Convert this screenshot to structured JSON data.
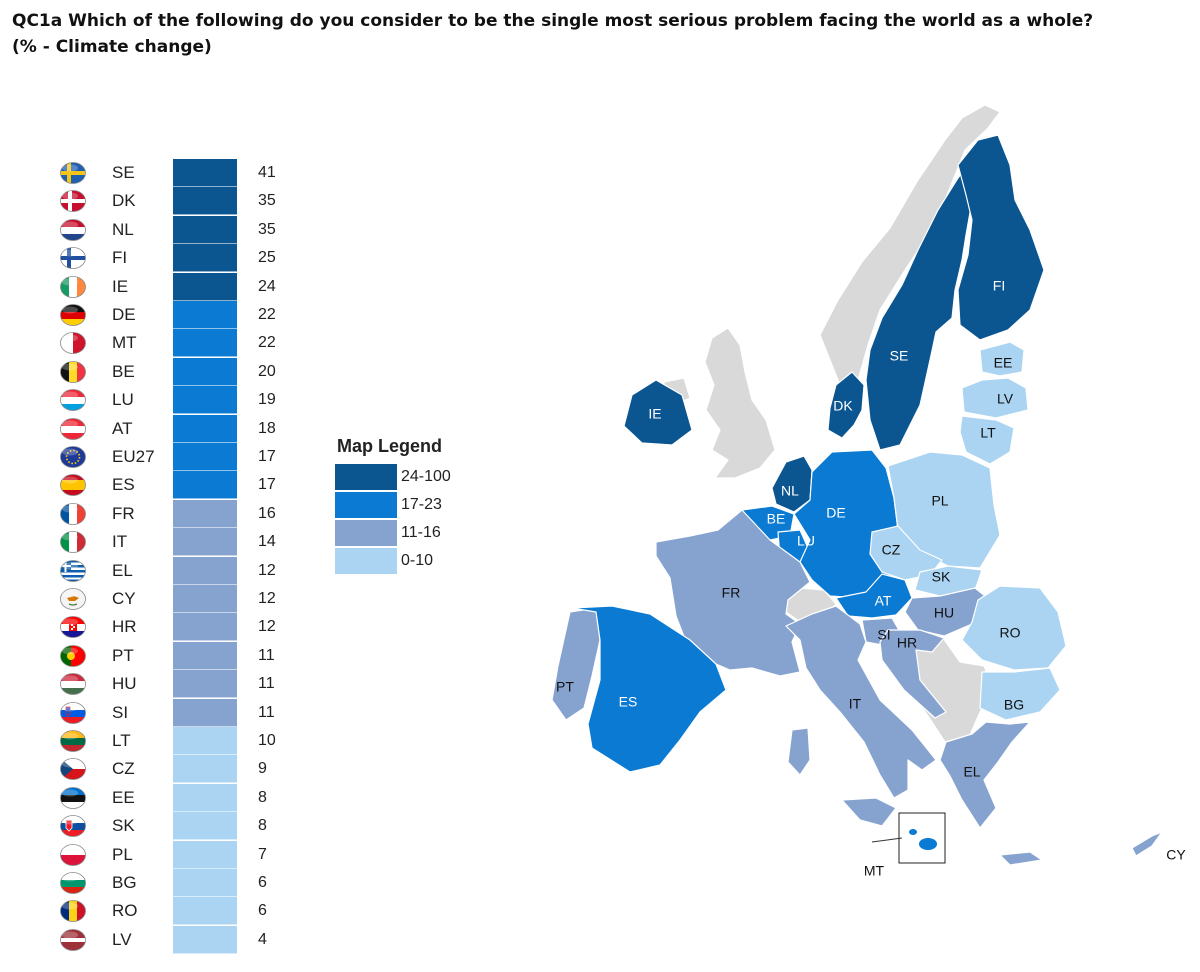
{
  "title": {
    "line1": "QC1a Which of the following do you consider to be the single most serious problem facing the world as a whole?",
    "line2": "(% - Climate change)"
  },
  "legend": {
    "title": "Map Legend",
    "classes": [
      {
        "label": "24-100",
        "color": "#0b5591"
      },
      {
        "label": "17-23",
        "color": "#0a7ad2"
      },
      {
        "label": "11-16",
        "color": "#86a3d0"
      },
      {
        "label": "0-10",
        "color": "#aad4f2"
      }
    ]
  },
  "table": [
    {
      "code": "SE",
      "value": 41,
      "class": 0,
      "flag": "sweden-flag-icon"
    },
    {
      "code": "DK",
      "value": 35,
      "class": 0,
      "flag": "denmark-flag-icon"
    },
    {
      "code": "NL",
      "value": 35,
      "class": 0,
      "flag": "netherlands-flag-icon"
    },
    {
      "code": "FI",
      "value": 25,
      "class": 0,
      "flag": "finland-flag-icon"
    },
    {
      "code": "IE",
      "value": 24,
      "class": 0,
      "flag": "ireland-flag-icon"
    },
    {
      "code": "DE",
      "value": 22,
      "class": 1,
      "flag": "germany-flag-icon"
    },
    {
      "code": "MT",
      "value": 22,
      "class": 1,
      "flag": "malta-flag-icon"
    },
    {
      "code": "BE",
      "value": 20,
      "class": 1,
      "flag": "belgium-flag-icon"
    },
    {
      "code": "LU",
      "value": 19,
      "class": 1,
      "flag": "luxembourg-flag-icon"
    },
    {
      "code": "AT",
      "value": 18,
      "class": 1,
      "flag": "austria-flag-icon"
    },
    {
      "code": "EU27",
      "value": 17,
      "class": 1,
      "flag": "eu-flag-icon"
    },
    {
      "code": "ES",
      "value": 17,
      "class": 1,
      "flag": "spain-flag-icon"
    },
    {
      "code": "FR",
      "value": 16,
      "class": 2,
      "flag": "france-flag-icon"
    },
    {
      "code": "IT",
      "value": 14,
      "class": 2,
      "flag": "italy-flag-icon"
    },
    {
      "code": "EL",
      "value": 12,
      "class": 2,
      "flag": "greece-flag-icon"
    },
    {
      "code": "CY",
      "value": 12,
      "class": 2,
      "flag": "cyprus-flag-icon"
    },
    {
      "code": "HR",
      "value": 12,
      "class": 2,
      "flag": "croatia-flag-icon"
    },
    {
      "code": "PT",
      "value": 11,
      "class": 2,
      "flag": "portugal-flag-icon"
    },
    {
      "code": "HU",
      "value": 11,
      "class": 2,
      "flag": "hungary-flag-icon"
    },
    {
      "code": "SI",
      "value": 11,
      "class": 2,
      "flag": "slovenia-flag-icon"
    },
    {
      "code": "LT",
      "value": 10,
      "class": 3,
      "flag": "lithuania-flag-icon"
    },
    {
      "code": "CZ",
      "value": 9,
      "class": 3,
      "flag": "czechia-flag-icon"
    },
    {
      "code": "EE",
      "value": 8,
      "class": 3,
      "flag": "estonia-flag-icon"
    },
    {
      "code": "SK",
      "value": 8,
      "class": 3,
      "flag": "slovakia-flag-icon"
    },
    {
      "code": "PL",
      "value": 7,
      "class": 3,
      "flag": "poland-flag-icon"
    },
    {
      "code": "BG",
      "value": 6,
      "class": 3,
      "flag": "bulgaria-flag-icon"
    },
    {
      "code": "RO",
      "value": 6,
      "class": 3,
      "flag": "romania-flag-icon"
    },
    {
      "code": "LV",
      "value": 4,
      "class": 3,
      "flag": "latvia-flag-icon"
    }
  ],
  "map_labels": {
    "SE": "SE",
    "FI": "FI",
    "EE": "EE",
    "LV": "LV",
    "LT": "LT",
    "DK": "DK",
    "IE": "IE",
    "NL": "NL",
    "BE": "BE",
    "LU": "LU",
    "DE": "DE",
    "PL": "PL",
    "CZ": "CZ",
    "SK": "SK",
    "AT": "AT",
    "HU": "HU",
    "SI": "SI",
    "HR": "HR",
    "RO": "RO",
    "BG": "BG",
    "FR": "FR",
    "PT": "PT",
    "ES": "ES",
    "IT": "IT",
    "EL": "EL",
    "MT": "MT",
    "CY": "CY"
  },
  "non_eu_color": "#d9d9d9"
}
